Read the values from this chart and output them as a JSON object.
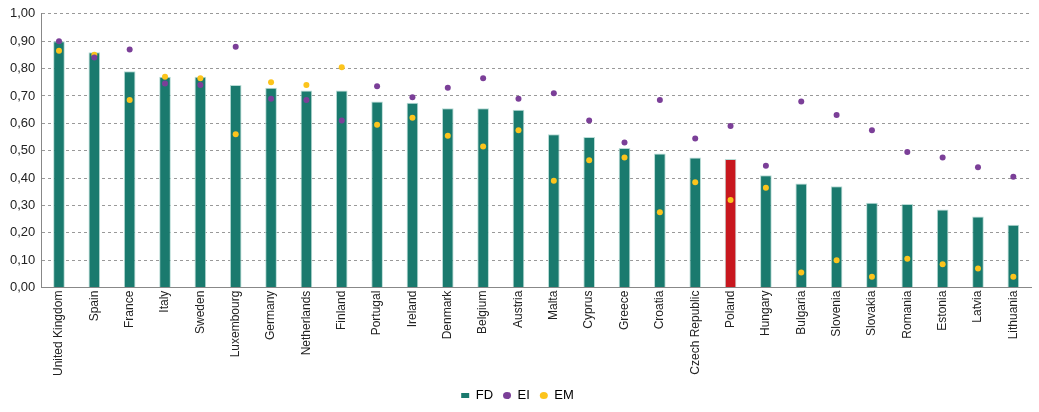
{
  "chart_data": {
    "type": "bar",
    "categories": [
      "United Kingdom",
      "Spain",
      "France",
      "Italy",
      "Sweden",
      "Luxembourg",
      "Germany",
      "Netherlands",
      "Finland",
      "Portugal",
      "Ireland",
      "Denmark",
      "Belgium",
      "Austria",
      "Malta",
      "Cyprus",
      "Greece",
      "Croatia",
      "Czech Republic",
      "Poland",
      "Hungary",
      "Bulgaria",
      "Slovenia",
      "Slovakia",
      "Romania",
      "Estonia",
      "Latvia",
      "Lithuania"
    ],
    "series": [
      {
        "name": "FD",
        "color": "#1a7a6e",
        "colors": [
          "#1a7a6e",
          "#1a7a6e",
          "#1a7a6e",
          "#1a7a6e",
          "#1a7a6e",
          "#1a7a6e",
          "#1a7a6e",
          "#1a7a6e",
          "#1a7a6e",
          "#1a7a6e",
          "#1a7a6e",
          "#1a7a6e",
          "#1a7a6e",
          "#1a7a6e",
          "#1a7a6e",
          "#1a7a6e",
          "#1a7a6e",
          "#1a7a6e",
          "#1a7a6e",
          "#c8171e",
          "#1a7a6e",
          "#1a7a6e",
          "#1a7a6e",
          "#1a7a6e",
          "#1a7a6e",
          "#1a7a6e",
          "#1a7a6e",
          "#1a7a6e"
        ],
        "values": [
          0.9,
          0.86,
          0.79,
          0.77,
          0.77,
          0.74,
          0.73,
          0.72,
          0.72,
          0.68,
          0.675,
          0.655,
          0.655,
          0.65,
          0.56,
          0.55,
          0.51,
          0.49,
          0.475,
          0.47,
          0.41,
          0.38,
          0.37,
          0.31,
          0.305,
          0.285,
          0.26,
          0.23
        ]
      },
      {
        "name": "EI",
        "type": "scatter",
        "color": "#7b3f98",
        "values": [
          0.9,
          0.84,
          0.87,
          0.745,
          0.74,
          0.88,
          0.69,
          0.685,
          0.61,
          0.735,
          0.695,
          0.73,
          0.765,
          0.69,
          0.71,
          0.61,
          0.53,
          0.685,
          0.545,
          0.59,
          0.445,
          0.68,
          0.63,
          0.575,
          0.495,
          0.475,
          0.44,
          0.405
        ]
      },
      {
        "name": "EM",
        "type": "scatter",
        "color": "#fcc41c",
        "values": [
          0.865,
          0.85,
          0.685,
          0.77,
          0.765,
          0.56,
          0.75,
          0.74,
          0.805,
          0.595,
          0.62,
          0.555,
          0.515,
          0.575,
          0.39,
          0.465,
          0.475,
          0.275,
          0.385,
          0.32,
          0.365,
          0.055,
          0.1,
          0.04,
          0.105,
          0.085,
          0.07,
          0.04
        ]
      }
    ],
    "ylim": [
      0,
      1
    ],
    "yticks": [
      {
        "value": 0,
        "label": "0,00"
      },
      {
        "value": 0.1,
        "label": "0,10"
      },
      {
        "value": 0.2,
        "label": "0,20"
      },
      {
        "value": 0.3,
        "label": "0,30"
      },
      {
        "value": 0.4,
        "label": "0,40"
      },
      {
        "value": 0.5,
        "label": "0,50"
      },
      {
        "value": 0.6,
        "label": "0,60"
      },
      {
        "value": 0.7,
        "label": "0,70"
      },
      {
        "value": 0.8,
        "label": "0,80"
      },
      {
        "value": 0.9,
        "label": "0,90"
      },
      {
        "value": 1,
        "label": "1,00"
      }
    ],
    "grid": "y",
    "legend": "bottom",
    "marker": "circle"
  }
}
